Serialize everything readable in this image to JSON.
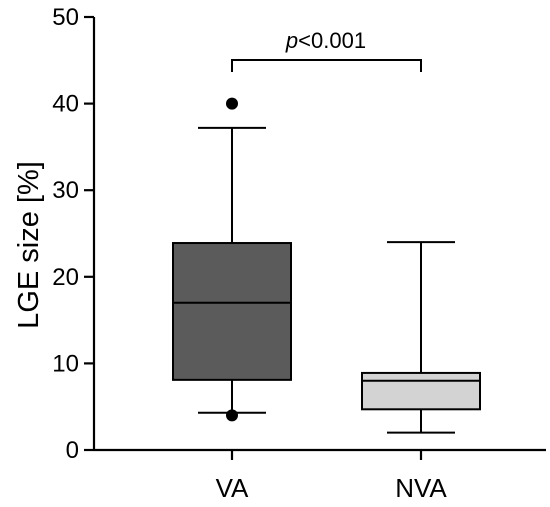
{
  "chart_data": {
    "type": "boxplot",
    "ylabel": "LGE size [%]",
    "ylim": [
      0,
      50
    ],
    "yticks": [
      0,
      10,
      20,
      30,
      40,
      50
    ],
    "categories": [
      "VA",
      "NVA"
    ],
    "boxes": [
      {
        "category": "VA",
        "whisker_low": 4.3,
        "q1": 8.1,
        "median": 17,
        "q3": 23.9,
        "whisker_high": 37.2,
        "outliers": [
          4,
          40
        ],
        "color": "#5b5b5b"
      },
      {
        "category": "NVA",
        "whisker_low": 2,
        "q1": 4.7,
        "median": 8,
        "q3": 8.9,
        "whisker_high": 24,
        "outliers": [],
        "color": "#d3d3d3"
      }
    ],
    "significance": {
      "between": [
        "VA",
        "NVA"
      ],
      "label_italic": "p",
      "label_rest": "<0.001"
    },
    "grid": false,
    "legend": "none"
  }
}
